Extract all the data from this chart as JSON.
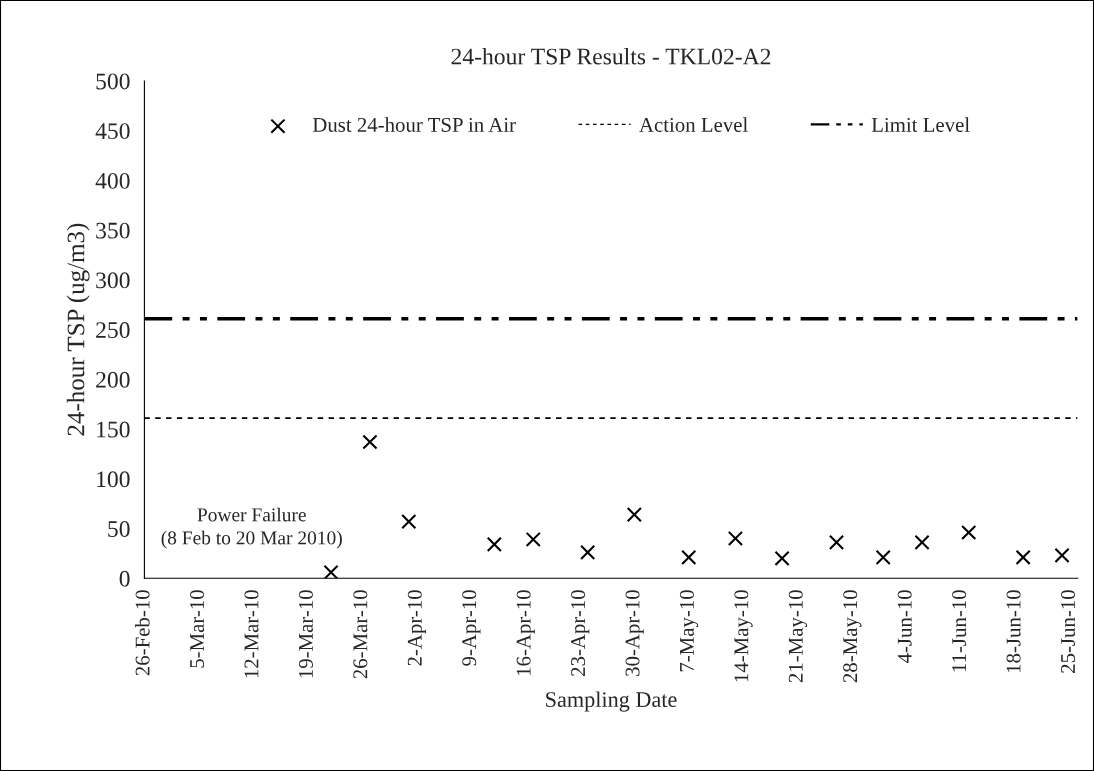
{
  "chart_data": {
    "type": "scatter",
    "title": "24-hour TSP Results - TKL02-A2",
    "xlabel": "Sampling Date",
    "ylabel": "24-hour TSP (ug/m3)",
    "x": [
      "2010-03-22",
      "2010-03-27",
      "2010-04-01",
      "2010-04-12",
      "2010-04-17",
      "2010-04-24",
      "2010-04-30",
      "2010-05-07",
      "2010-05-13",
      "2010-05-19",
      "2010-05-26",
      "2010-06-01",
      "2010-06-06",
      "2010-06-12",
      "2010-06-19",
      "2010-06-24"
    ],
    "series": [
      {
        "name": "Dust 24-hour TSP in Air",
        "color": "#000000",
        "values": [
          6,
          137,
          57,
          34,
          39,
          26,
          64,
          21,
          40,
          20,
          36,
          21,
          36,
          46,
          21,
          23
        ]
      }
    ],
    "marker": "cross",
    "ref_lines": [
      {
        "axis": "y",
        "value": 161,
        "label": "Action Level",
        "color": "#000000",
        "line_style": "dotted"
      },
      {
        "axis": "y",
        "value": 261,
        "label": "Limit Level",
        "color": "#000000",
        "line_style": "dashdot"
      }
    ],
    "annotations": [
      "Power Failure\n(8 Feb to 20 Mar 2010)"
    ],
    "xlim": [
      "2010-02-26",
      "2010-06-26"
    ],
    "xticks": [
      {
        "value": "2010-02-26",
        "label": "26-Feb-10"
      },
      {
        "value": "2010-03-05",
        "label": "5-Mar-10"
      },
      {
        "value": "2010-03-12",
        "label": "12-Mar-10"
      },
      {
        "value": "2010-03-19",
        "label": "19-Mar-10"
      },
      {
        "value": "2010-03-26",
        "label": "26-Mar-10"
      },
      {
        "value": "2010-04-02",
        "label": "2-Apr-10"
      },
      {
        "value": "2010-04-09",
        "label": "9-Apr-10"
      },
      {
        "value": "2010-04-16",
        "label": "16-Apr-10"
      },
      {
        "value": "2010-04-23",
        "label": "23-Apr-10"
      },
      {
        "value": "2010-04-30",
        "label": "30-Apr-10"
      },
      {
        "value": "2010-05-07",
        "label": "7-May-10"
      },
      {
        "value": "2010-05-14",
        "label": "14-May-10"
      },
      {
        "value": "2010-05-21",
        "label": "21-May-10"
      },
      {
        "value": "2010-05-28",
        "label": "28-May-10"
      },
      {
        "value": "2010-06-04",
        "label": "4-Jun-10"
      },
      {
        "value": "2010-06-11",
        "label": "11-Jun-10"
      },
      {
        "value": "2010-06-18",
        "label": "18-Jun-10"
      },
      {
        "value": "2010-06-25",
        "label": "25-Jun-10"
      }
    ],
    "ylim": [
      0,
      500
    ],
    "yticks": [
      0,
      50,
      100,
      150,
      200,
      250,
      300,
      350,
      400,
      450,
      500
    ],
    "grid": false,
    "legend": "top"
  }
}
